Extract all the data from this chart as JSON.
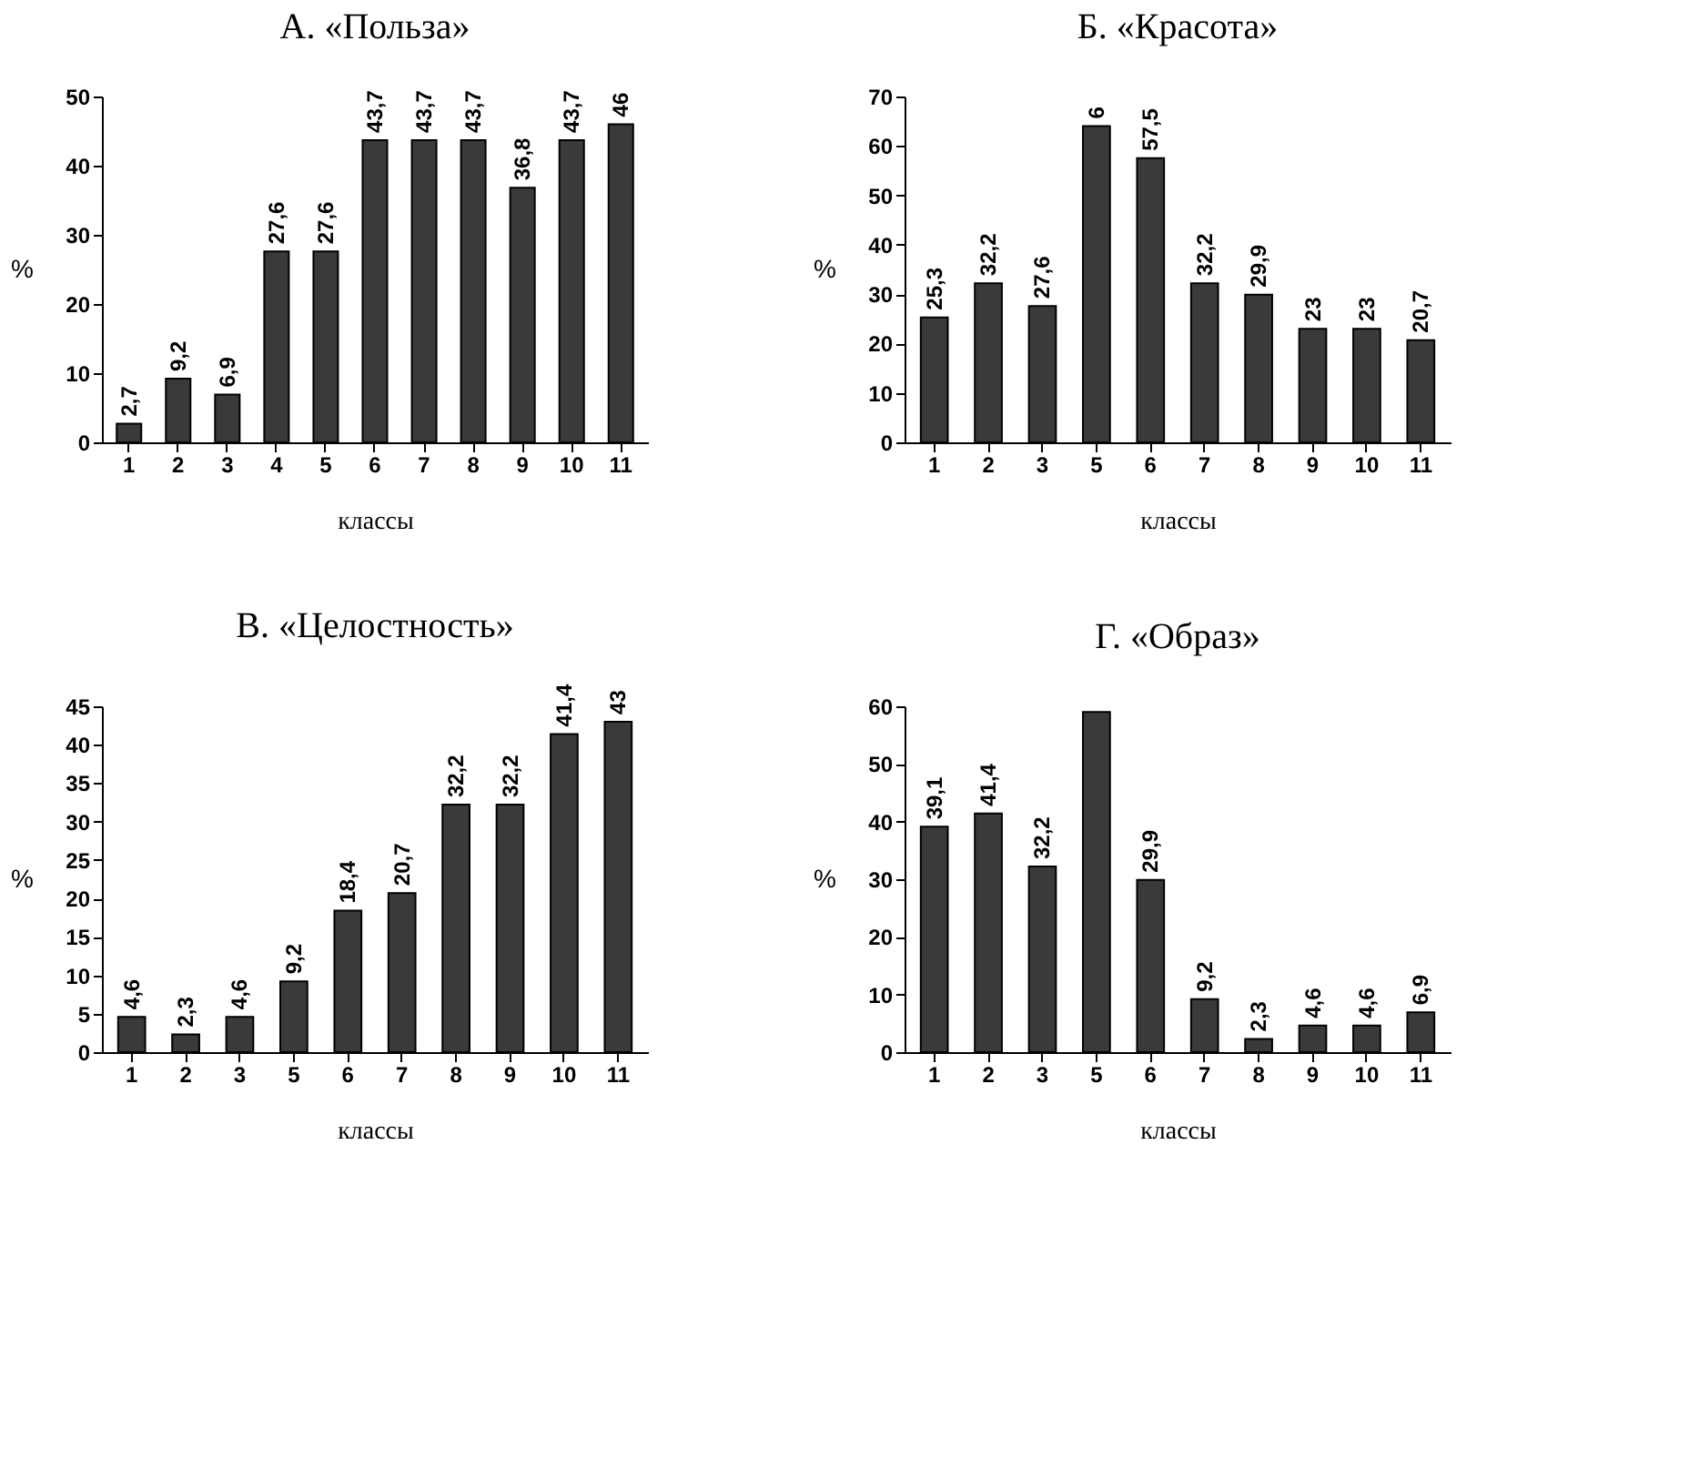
{
  "chart_data": [
    {
      "type": "bar",
      "title": "А. «Польза»",
      "xlabel": "классы",
      "ylabel": "%",
      "categories": [
        "1",
        "2",
        "3",
        "4",
        "5",
        "6",
        "7",
        "8",
        "9",
        "10",
        "11"
      ],
      "values": [
        2.7,
        9.2,
        6.9,
        27.6,
        27.6,
        43.7,
        43.7,
        43.7,
        36.8,
        43.7,
        46
      ],
      "value_labels": [
        "2,7",
        "9,2",
        "6,9",
        "27,6",
        "27,6",
        "43,7",
        "43,7",
        "43,7",
        "36,8",
        "43,7",
        "46"
      ],
      "color": "#3a3a3a",
      "ylim": [
        0,
        50
      ],
      "yticks": [
        0,
        10,
        20,
        30,
        40,
        50
      ]
    },
    {
      "type": "bar",
      "title": "Б. «Красота»",
      "xlabel": "классы",
      "ylabel": "%",
      "categories": [
        "1",
        "2",
        "3",
        "5",
        "6",
        "7",
        "8",
        "9",
        "10",
        "11"
      ],
      "values": [
        25.3,
        32.2,
        27.6,
        64,
        57.5,
        32.2,
        29.9,
        23,
        23,
        20.7
      ],
      "value_labels": [
        "25,3",
        "32,2",
        "27,6",
        null,
        "57,5",
        "32,2",
        "29,9",
        "23",
        "23",
        "20,7"
      ],
      "annotations": [
        {
          "text": "6",
          "x": "5",
          "y": 64
        }
      ],
      "color": "#3a3a3a",
      "ylim": [
        0,
        70
      ],
      "yticks": [
        0,
        10,
        20,
        30,
        40,
        50,
        60,
        70
      ]
    },
    {
      "type": "bar",
      "title": "В. «Целостность»",
      "xlabel": "классы",
      "ylabel": "%",
      "categories": [
        "1",
        "2",
        "3",
        "5",
        "6",
        "7",
        "8",
        "9",
        "10",
        "11"
      ],
      "values": [
        4.6,
        2.3,
        4.6,
        9.2,
        18.4,
        20.7,
        32.2,
        32.2,
        41.4,
        43
      ],
      "value_labels": [
        "4,6",
        "2,3",
        "4,6",
        "9,2",
        "18,4",
        "20,7",
        "32,2",
        "32,2",
        "41,4",
        "43"
      ],
      "color": "#3a3a3a",
      "ylim": [
        0,
        45
      ],
      "yticks": [
        0,
        5,
        10,
        15,
        20,
        25,
        30,
        35,
        40,
        45
      ]
    },
    {
      "type": "bar",
      "title": "Г. «Образ»",
      "xlabel": "классы",
      "ylabel": "%",
      "categories": [
        "1",
        "2",
        "3",
        "5",
        "6",
        "7",
        "8",
        "9",
        "10",
        "11"
      ],
      "values": [
        39.1,
        41.4,
        32.2,
        59,
        29.9,
        9.2,
        2.3,
        4.6,
        4.6,
        6.9
      ],
      "value_labels": [
        "39,1",
        "41,4",
        "32,2",
        null,
        "29,9",
        "9,2",
        "2,3",
        "4,6",
        "4,6",
        "6,9"
      ],
      "color": "#3a3a3a",
      "ylim": [
        0,
        60
      ],
      "yticks": [
        0,
        10,
        20,
        30,
        40,
        50,
        60
      ]
    }
  ]
}
